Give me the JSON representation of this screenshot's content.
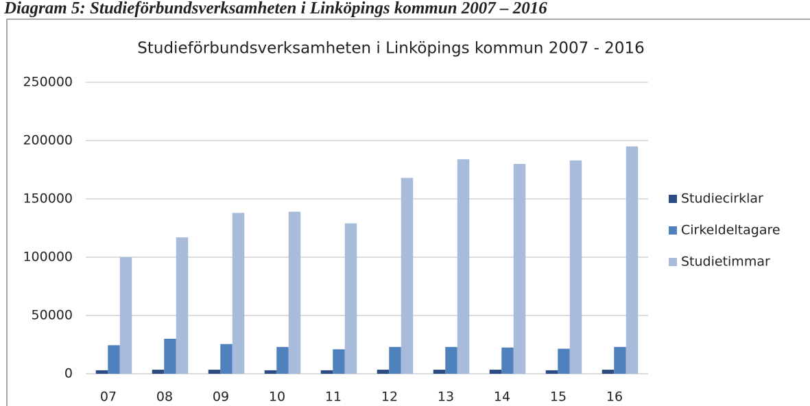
{
  "chart_data": {
    "type": "bar",
    "caption": "Diagram 5: Studieförbundsverksamheten i Linköpings kommun 2007 – 2016",
    "title": "Studieförbundsverksamheten i Linköpings kommun 2007 - 2016",
    "categories": [
      "07",
      "08",
      "09",
      "10",
      "11",
      "12",
      "13",
      "14",
      "15",
      "16"
    ],
    "series": [
      {
        "name": "Studiecirklar",
        "color": "#2c4d84",
        "values": [
          3000,
          3500,
          3500,
          3000,
          3000,
          3500,
          3500,
          3500,
          3000,
          3500
        ]
      },
      {
        "name": "Cirkeldeltagare",
        "color": "#4f81bd",
        "values": [
          24500,
          30000,
          25500,
          23000,
          21000,
          23000,
          23000,
          22500,
          21500,
          23000
        ]
      },
      {
        "name": "Studietimmar",
        "color": "#a9bbdb",
        "values": [
          100000,
          117000,
          138000,
          139000,
          129000,
          168000,
          184000,
          180000,
          183000,
          195000
        ]
      }
    ],
    "ylim": [
      0,
      250000
    ],
    "yticks": [
      0,
      50000,
      100000,
      150000,
      200000,
      250000
    ],
    "grid": true,
    "legend": "right"
  }
}
